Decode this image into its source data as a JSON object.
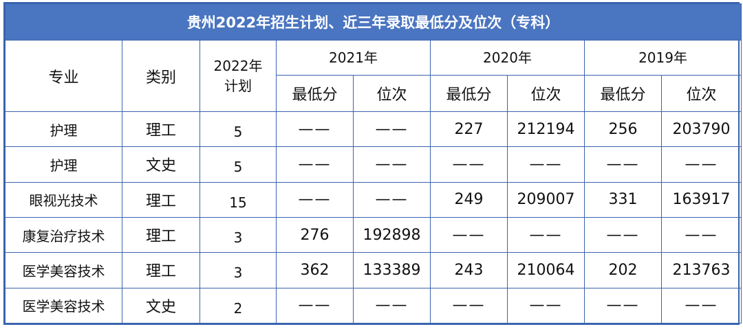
{
  "title": "贵州2022年招生计划、近三年录取最低分及位次（专科）",
  "headers": {
    "major": "专业",
    "category": "类别",
    "plan_line1": "2022年",
    "plan_line2": "计划",
    "year_2021": "2021年",
    "year_2020": "2020年",
    "year_2019": "2019年",
    "min_score": "最低分",
    "rank": "位次"
  },
  "rows": [
    {
      "major": "护理",
      "category": "理工",
      "plan": "5",
      "s2021": "——",
      "r2021": "——",
      "s2020": "227",
      "r2020": "212194",
      "s2019": "256",
      "r2019": "203790"
    },
    {
      "major": "护理",
      "category": "文史",
      "plan": "5",
      "s2021": "——",
      "r2021": "——",
      "s2020": "——",
      "r2020": "——",
      "s2019": "——",
      "r2019": "——"
    },
    {
      "major": "眼视光技术",
      "category": "理工",
      "plan": "15",
      "s2021": "——",
      "r2021": "——",
      "s2020": "249",
      "r2020": "209007",
      "s2019": "331",
      "r2019": "163917"
    },
    {
      "major": "康复治疗技术",
      "category": "理工",
      "plan": "3",
      "s2021": "276",
      "r2021": "192898",
      "s2020": "——",
      "r2020": "——",
      "s2019": "——",
      "r2019": "——"
    },
    {
      "major": "医学美容技术",
      "category": "理工",
      "plan": "3",
      "s2021": "362",
      "r2021": "133389",
      "s2020": "243",
      "r2020": "210064",
      "s2019": "202",
      "r2019": "213763"
    },
    {
      "major": "医学美容技术",
      "category": "文史",
      "plan": "2",
      "s2021": "——",
      "r2021": "——",
      "s2020": "——",
      "r2020": "——",
      "s2019": "——",
      "r2019": "——"
    }
  ],
  "colors": {
    "header_bg": "#4a75c0",
    "border": "#3a63ad",
    "header_text": "#ffffff"
  }
}
